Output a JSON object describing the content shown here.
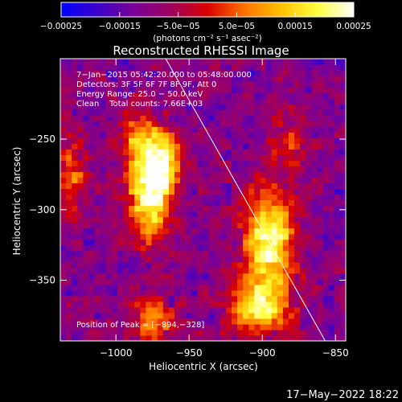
{
  "colorbar": {
    "min": -0.00025,
    "max": 0.00025,
    "tick_values": [
      -0.00025,
      -0.00015,
      -5e-05,
      5e-05,
      0.00015,
      0.00025
    ],
    "tick_labels": [
      "−0.00025",
      "−0.00015",
      "−5.0e−05",
      "5.0e−05",
      "0.00015",
      "0.00025"
    ],
    "unit_label": "(photons cm⁻² s⁻¹ asec⁻²)",
    "colormap": [
      "#0000ff",
      "#3c00c8",
      "#7a0096",
      "#a00060",
      "#d80000",
      "#ff7000",
      "#ffc000",
      "#ffff40",
      "#ffffff"
    ]
  },
  "chart_data": {
    "type": "heatmap",
    "title": "Reconstructed RHESSI Image",
    "xlabel": "Heliocentric X (arcsec)",
    "ylabel": "Heliocentric Y (arcsec)",
    "xlim": [
      -1038,
      -843
    ],
    "ylim": [
      -393,
      -193
    ],
    "x_ticks": [
      -1000,
      -950,
      -900,
      -850
    ],
    "x_tick_labels": [
      "−1000",
      "−950",
      "−900",
      "−850"
    ],
    "y_ticks": [
      -350,
      -300,
      -250
    ],
    "y_tick_labels": [
      "−350",
      "−300",
      "−250"
    ],
    "annotations": [
      "7−Jan−2015 05:42:20.000 to 05:48:00.000",
      "Detectors: 3F 5F 6F 7F 8F 9F, Att 0",
      "Energy Range: 25.0 − 50.0 keV",
      "Clean    Total counts: 7.66E+03",
      "Position of Peak = [−894,−328]"
    ],
    "peak": {
      "x": -894,
      "y": -328
    },
    "limb_line": [
      {
        "x": -966,
        "y": -193
      },
      {
        "x": -857,
        "y": -393
      }
    ],
    "sources": [
      {
        "x": -977,
        "y": -290,
        "sx": 10,
        "sy": 22,
        "amp": 1.0
      },
      {
        "x": -968,
        "y": -265,
        "sx": 8,
        "sy": 15,
        "amp": 0.75
      },
      {
        "x": -895,
        "y": -322,
        "sx": 12,
        "sy": 25,
        "amp": 1.0
      },
      {
        "x": -903,
        "y": -370,
        "sx": 14,
        "sy": 12,
        "amp": 0.85
      },
      {
        "x": -985,
        "y": -250,
        "sx": 10,
        "sy": 12,
        "amp": 0.55
      },
      {
        "x": -1030,
        "y": -275,
        "sx": 7,
        "sy": 18,
        "amp": 0.5
      },
      {
        "x": -975,
        "y": -378,
        "sx": 10,
        "sy": 10,
        "amp": 0.6
      },
      {
        "x": -883,
        "y": -255,
        "sx": 8,
        "sy": 14,
        "amp": 0.35
      }
    ]
  },
  "footer": {
    "timestamp": "17−May−2022 18:22"
  }
}
